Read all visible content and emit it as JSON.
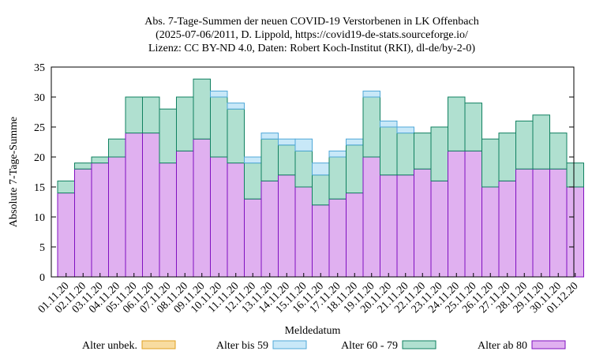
{
  "chart_data": {
    "type": "bar",
    "stacked": true,
    "title_lines": [
      "Abs. 7-Tage-Summen der neuen COVID-19 Verstorbenen in LK Offenbach",
      "(2025-07-06/2011, D. Lippold, https://covid19-de-stats.sourceforge.io/",
      "Lizenz: CC BY-ND 4.0, Daten: Robert Koch-Institut (RKI), dl-de/by-2-0)"
    ],
    "xlabel": "Meldedatum",
    "ylabel": "Absolute 7-Tage-Summe",
    "ylim": [
      0,
      35
    ],
    "yticks": [
      0,
      5,
      10,
      15,
      20,
      25,
      30,
      35
    ],
    "grid": false,
    "legend_position": "bottom",
    "categories": [
      "01.11.20",
      "02.11.20",
      "03.11.20",
      "04.11.20",
      "05.11.20",
      "06.11.20",
      "07.11.20",
      "08.11.20",
      "09.11.20",
      "10.11.20",
      "11.11.20",
      "12.11.20",
      "13.11.20",
      "14.11.20",
      "15.11.20",
      "16.11.20",
      "17.11.20",
      "18.11.20",
      "19.11.20",
      "20.11.20",
      "21.11.20",
      "22.11.20",
      "23.11.20",
      "24.11.20",
      "25.11.20",
      "26.11.20",
      "27.11.20",
      "28.11.20",
      "29.11.20",
      "30.11.20",
      "01.12.20"
    ],
    "series": [
      {
        "name": "Alter ab 80",
        "fill": "#e0b0f0",
        "stroke": "#8010c0",
        "values": [
          14,
          18,
          19,
          20,
          24,
          24,
          19,
          21,
          23,
          20,
          19,
          13,
          16,
          17,
          15,
          12,
          13,
          14,
          20,
          17,
          17,
          18,
          16,
          21,
          21,
          15,
          16,
          18,
          18,
          18,
          15
        ]
      },
      {
        "name": "Alter 60 - 79",
        "fill": "#b0e0d0",
        "stroke": "#108060",
        "values": [
          2,
          1,
          1,
          3,
          6,
          6,
          9,
          9,
          10,
          10,
          9,
          6,
          7,
          5,
          6,
          5,
          7,
          8,
          10,
          8,
          7,
          6,
          9,
          9,
          8,
          8,
          8,
          8,
          9,
          6,
          4
        ]
      },
      {
        "name": "Alter bis 59",
        "fill": "#c8e8f8",
        "stroke": "#50a8d8",
        "values": [
          0,
          0,
          0,
          0,
          0,
          0,
          0,
          0,
          0,
          1,
          1,
          1,
          1,
          1,
          2,
          2,
          1,
          1,
          1,
          1,
          1,
          0,
          0,
          0,
          0,
          0,
          0,
          0,
          0,
          0,
          0
        ]
      },
      {
        "name": "Alter unbek.",
        "fill": "#f8dca0",
        "stroke": "#e0a020",
        "values": [
          0,
          0,
          0,
          0,
          0,
          0,
          0,
          0,
          0,
          0,
          0,
          0,
          0,
          0,
          0,
          0,
          0,
          0,
          0,
          0,
          0,
          0,
          0,
          0,
          0,
          0,
          0,
          0,
          0,
          0,
          0
        ]
      }
    ],
    "legend_order": [
      "Alter unbek.",
      "Alter bis 59",
      "Alter 60 - 79",
      "Alter ab 80"
    ]
  }
}
